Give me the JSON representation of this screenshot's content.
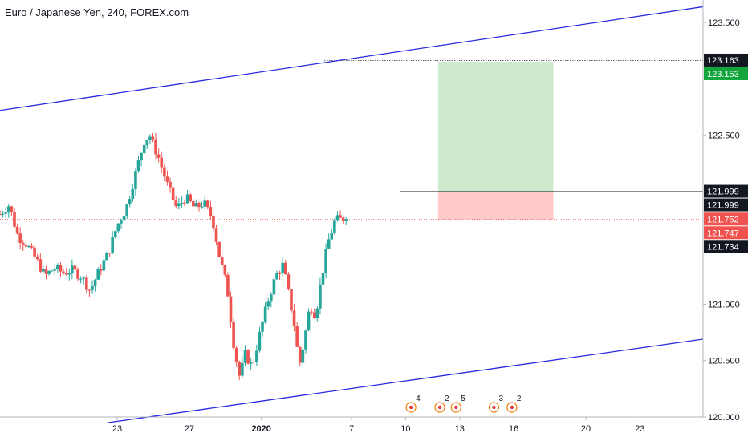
{
  "header": {
    "title": "Euro / Japanese Yen, 240, FOREX.com"
  },
  "colors": {
    "up": "#26a69a",
    "down": "#ef5350",
    "channel": "#2828e0",
    "profit_zone": "#cdebcc",
    "loss_zone": "#ffcaca",
    "last_price_line": "#ef5350",
    "dark_tag": "#131722",
    "green_tag": "#12a53c",
    "red_tag": "#ef5350"
  },
  "chart_data": {
    "type": "candlestick",
    "symbol": "Euro / Japanese Yen",
    "interval": "240",
    "source": "FOREX.com",
    "ylim": [
      120.0,
      123.7
    ],
    "y_ticks": [
      "123.500",
      "122.500",
      "121.000",
      "120.500",
      "120.000"
    ],
    "y_tick_values": [
      123.5,
      122.5,
      121.0,
      120.5,
      120.0
    ],
    "x_tick_labels": [
      "23",
      "27",
      "2020",
      "7",
      "10",
      "13",
      "16",
      "20",
      "23"
    ],
    "x_tick_positions": [
      22.5,
      26.5,
      30.5,
      35.5,
      38.5,
      41.5,
      44.5,
      48.5,
      51.5
    ],
    "x_range": [
      16,
      55
    ],
    "price_tags": [
      {
        "label": "123.163",
        "value": 123.163,
        "style": "dark"
      },
      {
        "label": "123.153",
        "value": 123.153,
        "style": "green"
      },
      {
        "label": "121.999",
        "value": 121.999,
        "style": "dark"
      },
      {
        "label": "121.999",
        "value": 121.999,
        "style": "dark"
      },
      {
        "label": "121.752",
        "value": 121.752,
        "style": "red"
      },
      {
        "label": "121.747",
        "value": 121.747,
        "style": "red"
      },
      {
        "label": "121.734",
        "value": 121.734,
        "style": "dark"
      }
    ],
    "position": {
      "type": "long",
      "entry": 121.747,
      "target": 123.153,
      "stop": 121.999,
      "start": 40.3,
      "end": 46.7
    },
    "dotted_target_line": {
      "value": 123.163,
      "start": 34,
      "end": 55
    },
    "stop_line": {
      "value": 121.999,
      "start": 38.2,
      "end": 55
    },
    "entry_line": {
      "value": 121.747,
      "start": 38.0,
      "end": 55
    },
    "last_price": 121.752,
    "channel": [
      {
        "x1": 16,
        "y1": 122.72,
        "x2": 55,
        "y2": 123.64
      },
      {
        "x1": 22,
        "y1": 119.95,
        "x2": 55,
        "y2": 120.69
      }
    ],
    "event_markers": [
      {
        "x": 38.8,
        "count": "4"
      },
      {
        "x": 40.4,
        "count": "2"
      },
      {
        "x": 41.3,
        "count": "5"
      },
      {
        "x": 43.4,
        "count": "3"
      },
      {
        "x": 44.4,
        "count": "2"
      }
    ],
    "close_path": [
      [
        16.0,
        121.8
      ],
      [
        16.5,
        121.88
      ],
      [
        17.0,
        121.6
      ],
      [
        17.4,
        121.55
      ],
      [
        18.0,
        121.4
      ],
      [
        18.5,
        121.25
      ],
      [
        19.0,
        121.32
      ],
      [
        19.5,
        121.28
      ],
      [
        20.0,
        121.3
      ],
      [
        20.5,
        121.25
      ],
      [
        21.0,
        121.12
      ],
      [
        21.5,
        121.3
      ],
      [
        22.0,
        121.45
      ],
      [
        22.5,
        121.7
      ],
      [
        23.0,
        121.85
      ],
      [
        23.5,
        122.15
      ],
      [
        24.0,
        122.45
      ],
      [
        24.3,
        122.5
      ],
      [
        24.8,
        122.3
      ],
      [
        25.3,
        122.05
      ],
      [
        25.8,
        121.85
      ],
      [
        26.3,
        121.95
      ],
      [
        26.8,
        121.85
      ],
      [
        27.3,
        121.9
      ],
      [
        27.8,
        121.75
      ],
      [
        28.2,
        121.4
      ],
      [
        28.6,
        121.15
      ],
      [
        29.0,
        120.6
      ],
      [
        29.3,
        120.35
      ],
      [
        29.6,
        120.55
      ],
      [
        30.0,
        120.45
      ],
      [
        30.5,
        120.8
      ],
      [
        30.9,
        121.05
      ],
      [
        31.3,
        121.25
      ],
      [
        31.7,
        121.35
      ],
      [
        32.0,
        121.1
      ],
      [
        32.3,
        120.85
      ],
      [
        32.6,
        120.45
      ],
      [
        32.9,
        120.7
      ],
      [
        33.2,
        121.0
      ],
      [
        33.5,
        120.9
      ],
      [
        33.8,
        121.2
      ],
      [
        34.2,
        121.55
      ],
      [
        34.6,
        121.75
      ],
      [
        35.0,
        121.75
      ],
      [
        35.3,
        121.82
      ]
    ]
  }
}
